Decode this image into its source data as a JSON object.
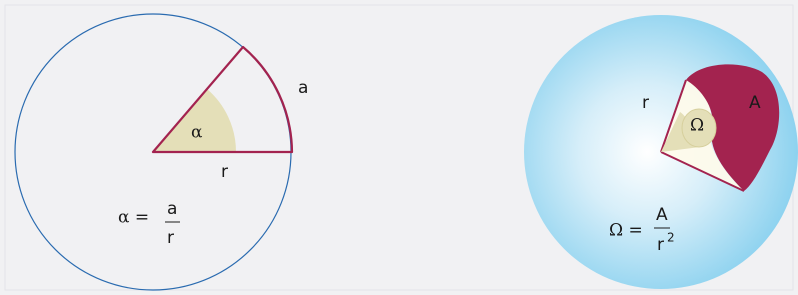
{
  "plane_angle": {
    "arc_label": "a",
    "angle_label": "α",
    "radius_label": "r",
    "formula": {
      "lhs": "α =",
      "numerator": "a",
      "denominator": "r"
    }
  },
  "solid_angle": {
    "radius_label": "r",
    "area_label": "A",
    "angle_label": "Ω",
    "formula": {
      "lhs": "Ω =",
      "numerator": "A",
      "denominator": "r",
      "exponent": "2"
    }
  }
}
